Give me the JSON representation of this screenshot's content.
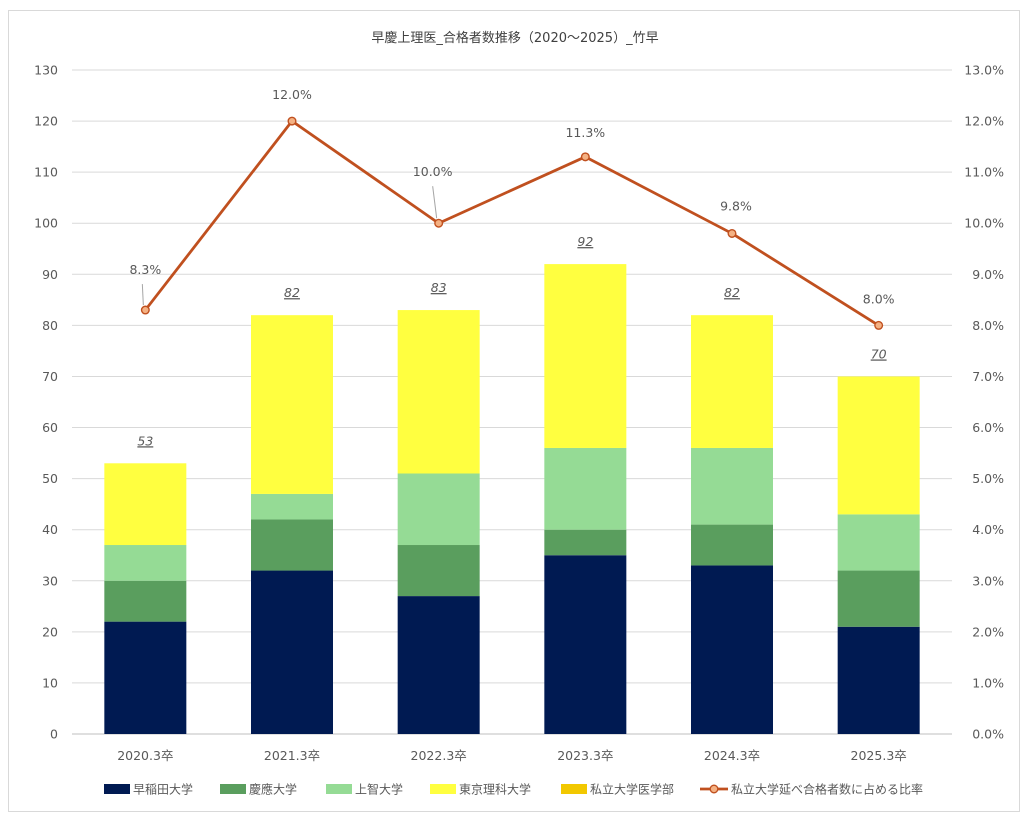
{
  "chart_data": {
    "type": "bar",
    "title": "早慶上理医_合格者数推移（2020～2025）_竹早",
    "categories": [
      "2020.3卒",
      "2021.3卒",
      "2022.3卒",
      "2023.3卒",
      "2024.3卒",
      "2025.3卒"
    ],
    "series": [
      {
        "name": "早稲田大学",
        "color": "#001a52",
        "values": [
          22,
          32,
          27,
          35,
          33,
          21
        ]
      },
      {
        "name": "慶應大学",
        "color": "#5a9e5e",
        "values": [
          8,
          10,
          10,
          5,
          8,
          11
        ]
      },
      {
        "name": "上智大学",
        "color": "#95db95",
        "values": [
          7,
          5,
          14,
          16,
          15,
          11
        ]
      },
      {
        "name": "東京理科大学",
        "color": "#ffff40",
        "values": [
          16,
          35,
          32,
          36,
          26,
          27
        ]
      },
      {
        "name": "私立大学医学部",
        "color": "#f2c800",
        "values": [
          0,
          0,
          0,
          0,
          0,
          0
        ]
      }
    ],
    "totals": [
      "53",
      "82",
      "83",
      "92",
      "82",
      "70"
    ],
    "line_series": {
      "name": "私立大学延べ合格者数に占める比率",
      "color": "#c0501f",
      "values": [
        8.3,
        12.0,
        10.0,
        11.3,
        9.8,
        8.0
      ],
      "labels": [
        "8.3%",
        "12.0%",
        "10.0%",
        "11.3%",
        "9.8%",
        "8.0%"
      ]
    },
    "y_left": {
      "min": 0,
      "max": 130,
      "step": 10
    },
    "y_right": {
      "min": 0,
      "max": 13,
      "step": 1,
      "ticks": [
        "0.0%",
        "1.0%",
        "2.0%",
        "3.0%",
        "4.0%",
        "5.0%",
        "6.0%",
        "7.0%",
        "8.0%",
        "9.0%",
        "10.0%",
        "11.0%",
        "12.0%",
        "13.0%"
      ]
    },
    "grid": true,
    "legend_position": "bottom"
  }
}
